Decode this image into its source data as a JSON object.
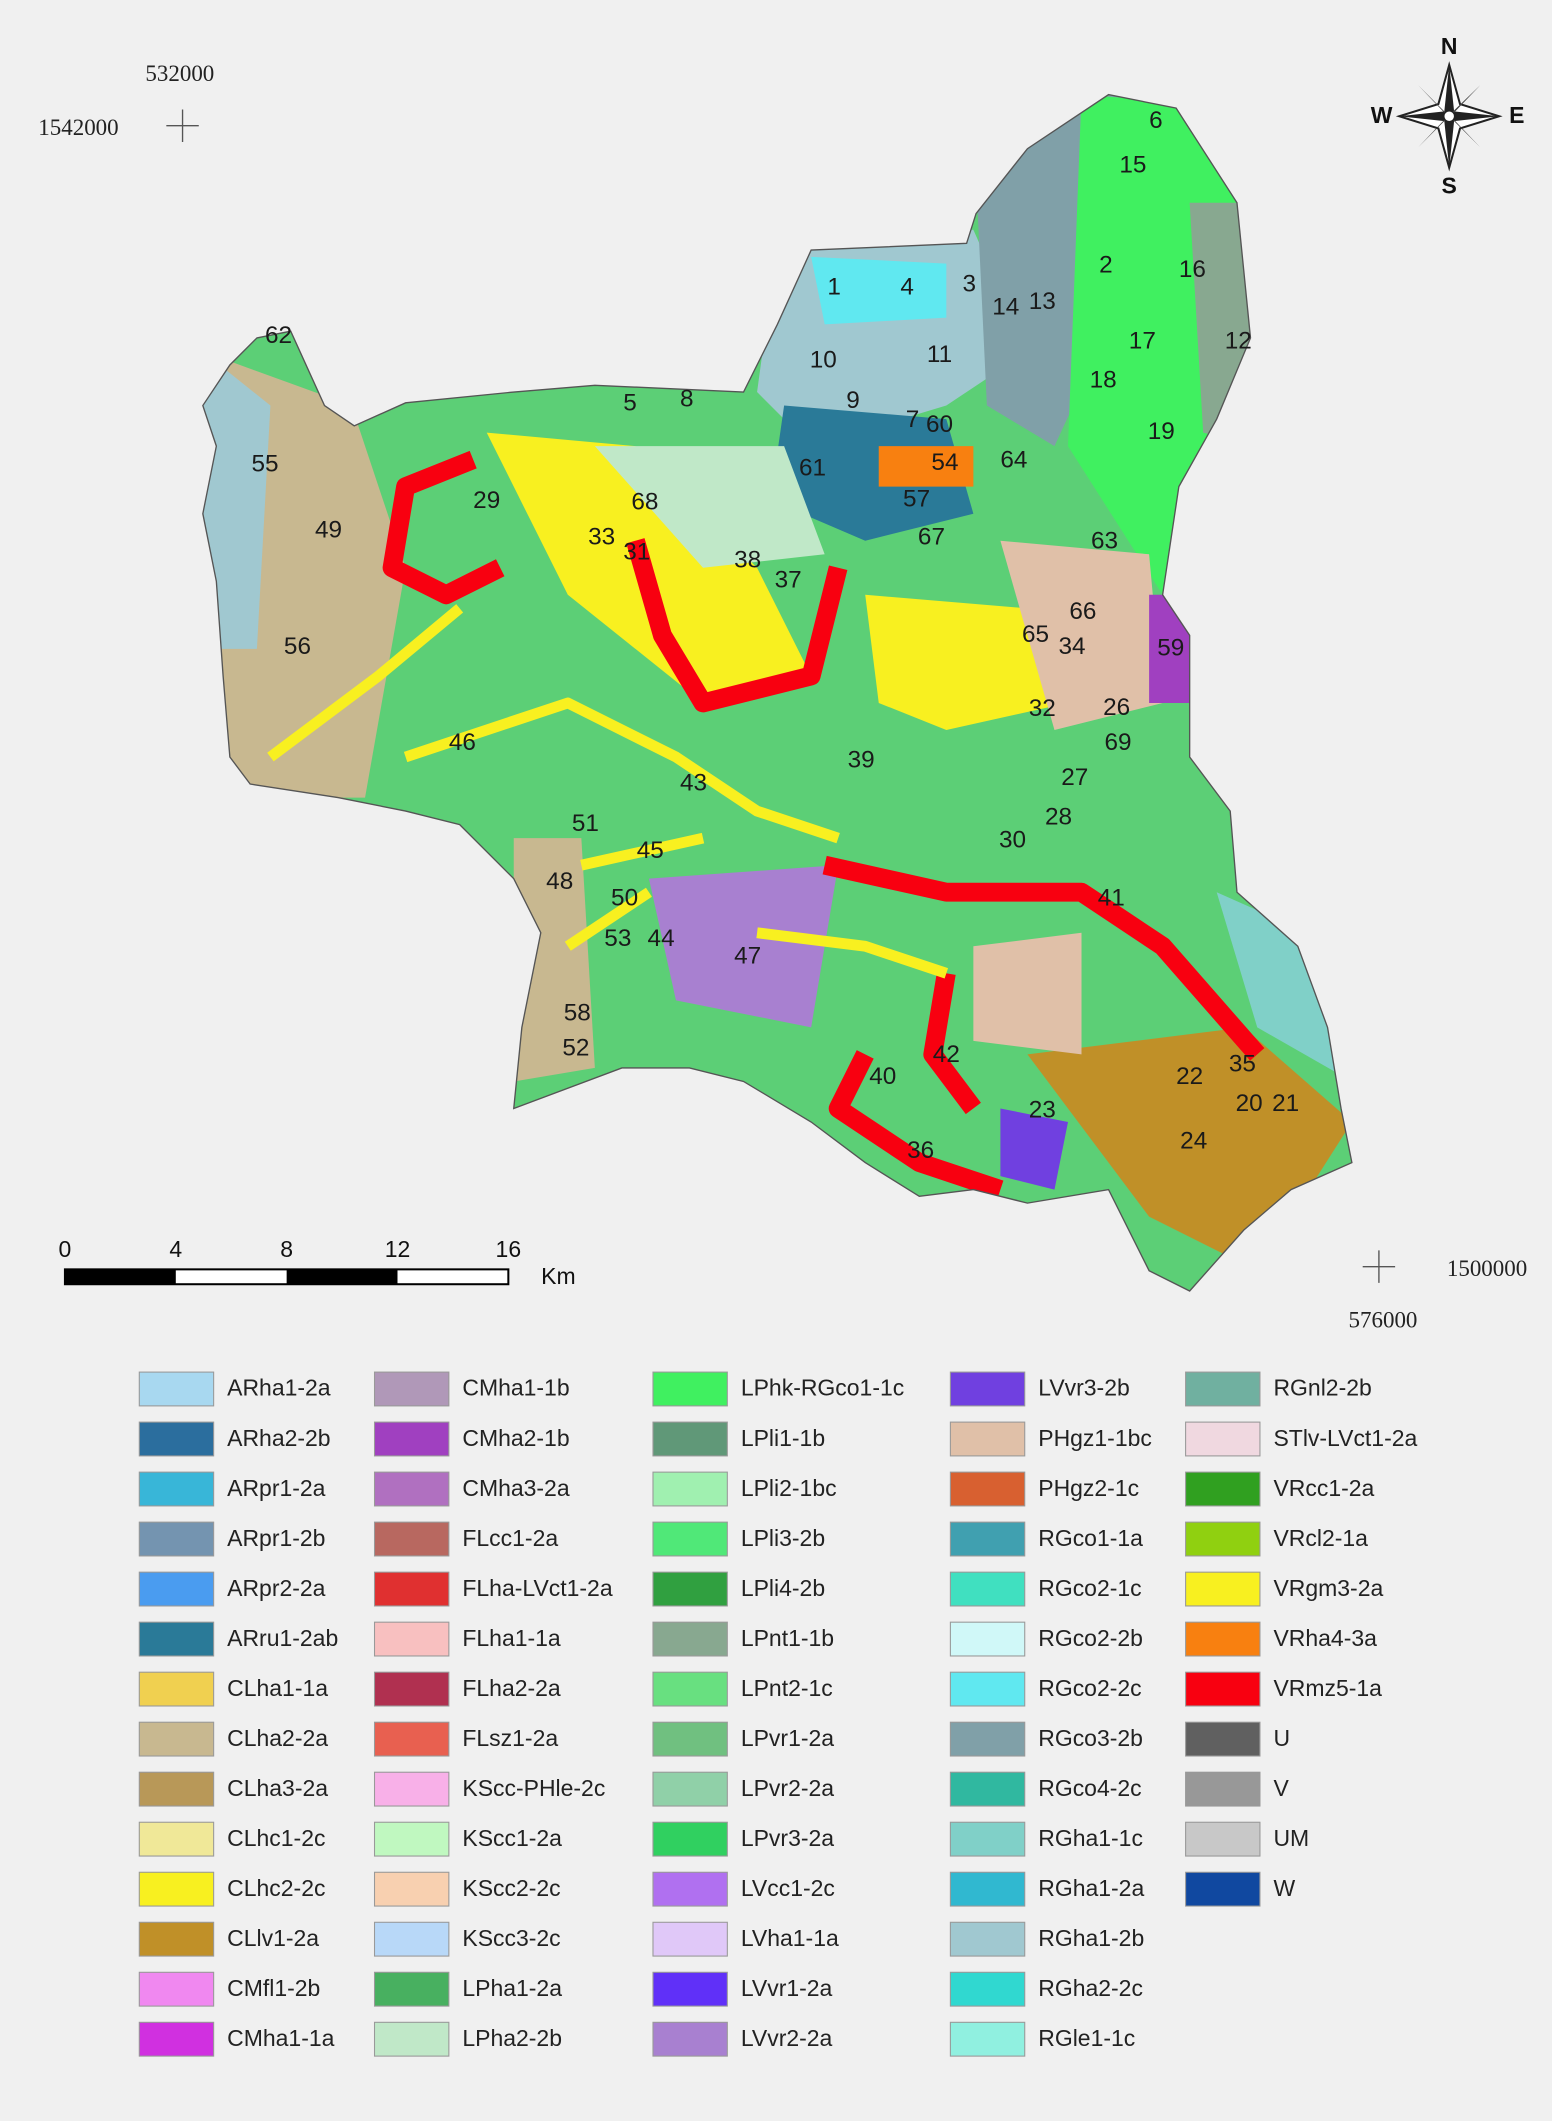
{
  "map": {
    "coordinates": {
      "top_x": "532000",
      "top_y": "1542000",
      "bottom_y": "1500000",
      "bottom_x": "576000"
    },
    "compass": {
      "n": "N",
      "s": "S",
      "w": "W",
      "e": "E"
    },
    "scale_bar": {
      "ticks": [
        "0",
        "4",
        "8",
        "12",
        "16"
      ],
      "unit": "Km"
    },
    "regions": [
      "6",
      "15",
      "2",
      "16",
      "1",
      "4",
      "3",
      "14",
      "13",
      "12",
      "17",
      "10",
      "11",
      "18",
      "62",
      "5",
      "8",
      "9",
      "7",
      "60",
      "19",
      "55",
      "61",
      "54",
      "64",
      "29",
      "68",
      "57",
      "49",
      "33",
      "31",
      "38",
      "37",
      "67",
      "63",
      "66",
      "65",
      "34",
      "59",
      "56",
      "32",
      "26",
      "69",
      "46",
      "39",
      "43",
      "27",
      "28",
      "51",
      "45",
      "30",
      "48",
      "50",
      "41",
      "53",
      "44",
      "47",
      "58",
      "52",
      "22",
      "35",
      "40",
      "42",
      "20",
      "21",
      "23",
      "24",
      "36"
    ]
  },
  "legend": {
    "items": [
      {
        "label": "ARha1-2a",
        "color": "#a8d8f0"
      },
      {
        "label": "ARha2-2b",
        "color": "#2b6e9e"
      },
      {
        "label": "ARpr1-2a",
        "color": "#38b6d8"
      },
      {
        "label": "ARpr1-2b",
        "color": "#7494b0"
      },
      {
        "label": "ARpr2-2a",
        "color": "#4a9cf0"
      },
      {
        "label": "ARru1-2ab",
        "color": "#2a7a98"
      },
      {
        "label": "CLha1-1a",
        "color": "#f0d050"
      },
      {
        "label": "CLha2-2a",
        "color": "#c8b890"
      },
      {
        "label": "CLha3-2a",
        "color": "#b89858"
      },
      {
        "label": "CLhc1-2c",
        "color": "#f0e898"
      },
      {
        "label": "CLhc2-2c",
        "color": "#f8f020"
      },
      {
        "label": "CLlv1-2a",
        "color": "#c09028"
      },
      {
        "label": "CMfl1-2b",
        "color": "#f088f0"
      },
      {
        "label": "CMha1-1a",
        "color": "#d030e0"
      },
      {
        "label": "CMha1-1b",
        "color": "#b098b8"
      },
      {
        "label": "CMha2-1b",
        "color": "#a040c0"
      },
      {
        "label": "CMha3-2a",
        "color": "#b070c0"
      },
      {
        "label": "FLcc1-2a",
        "color": "#b86860"
      },
      {
        "label": "FLha-LVct1-2a",
        "color": "#e03030"
      },
      {
        "label": "FLha1-1a",
        "color": "#f8c0c0"
      },
      {
        "label": "FLha2-2a",
        "color": "#b03050"
      },
      {
        "label": "FLsz1-2a",
        "color": "#e86050"
      },
      {
        "label": "KScc-PHle-2c",
        "color": "#f8b0e8"
      },
      {
        "label": "KScc1-2a",
        "color": "#c0f8c0"
      },
      {
        "label": "KScc2-2c",
        "color": "#f8d0b0"
      },
      {
        "label": "KScc3-2c",
        "color": "#b8d8f8"
      },
      {
        "label": "LPha1-2a",
        "color": "#48b060"
      },
      {
        "label": "LPha2-2b",
        "color": "#c0e8c8"
      },
      {
        "label": "LPhk-RGco1-1c",
        "color": "#40f060"
      },
      {
        "label": "LPli1-1b",
        "color": "#609878"
      },
      {
        "label": "LPli2-1bc",
        "color": "#a0f0b0"
      },
      {
        "label": "LPli3-2b",
        "color": "#50e878"
      },
      {
        "label": "LPli4-2b",
        "color": "#30a040"
      },
      {
        "label": "LPnt1-1b",
        "color": "#88a890"
      },
      {
        "label": "LPnt2-1c",
        "color": "#68e080"
      },
      {
        "label": "LPvr1-2a",
        "color": "#70c080"
      },
      {
        "label": "LPvr2-2a",
        "color": "#90d0a8"
      },
      {
        "label": "LPvr3-2a",
        "color": "#30d060"
      },
      {
        "label": "LVcc1-2c",
        "color": "#b070f0"
      },
      {
        "label": "LVha1-1a",
        "color": "#e0c8f8"
      },
      {
        "label": "LVvr1-2a",
        "color": "#6030f8"
      },
      {
        "label": "LVvr2-2a",
        "color": "#a880d0"
      },
      {
        "label": "LVvr3-2b",
        "color": "#7040e0"
      },
      {
        "label": "PHgz1-1bc",
        "color": "#e0c0a8"
      },
      {
        "label": "PHgz2-1c",
        "color": "#d86030"
      },
      {
        "label": "RGco1-1a",
        "color": "#40a0b0"
      },
      {
        "label": "RGco2-1c",
        "color": "#40e0c0"
      },
      {
        "label": "RGco2-2b",
        "color": "#d0f8f8"
      },
      {
        "label": "RGco2-2c",
        "color": "#60e8f0"
      },
      {
        "label": "RGco3-2b",
        "color": "#80a0a8"
      },
      {
        "label": "RGco4-2c",
        "color": "#30b8a0"
      },
      {
        "label": "RGha1-1c",
        "color": "#80d0c8"
      },
      {
        "label": "RGha1-2a",
        "color": "#30b8d0"
      },
      {
        "label": "RGha1-2b",
        "color": "#a0c8d0"
      },
      {
        "label": "RGha2-2c",
        "color": "#30d8d0"
      },
      {
        "label": "RGle1-1c",
        "color": "#90f0e0"
      },
      {
        "label": "RGnl2-2b",
        "color": "#70b0a0"
      },
      {
        "label": "STlv-LVct1-2a",
        "color": "#f0d8e0"
      },
      {
        "label": "VRcc1-2a",
        "color": "#30a020"
      },
      {
        "label": "VRcl2-1a",
        "color": "#90d010"
      },
      {
        "label": "VRgm3-2a",
        "color": "#f8f020"
      },
      {
        "label": "VRha4-3a",
        "color": "#f88010"
      },
      {
        "label": "VRmz5-1a",
        "color": "#f80010"
      },
      {
        "label": "U",
        "color": "#606060"
      },
      {
        "label": "V",
        "color": "#989898"
      },
      {
        "label": "UM",
        "color": "#c8c8c8"
      },
      {
        "label": "W",
        "color": "#1048a0"
      }
    ]
  }
}
